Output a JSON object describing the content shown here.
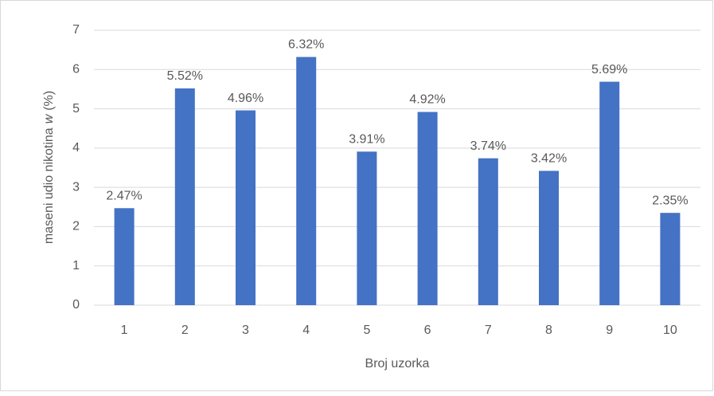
{
  "chart_data": {
    "type": "bar",
    "x_label": "Broj uzorka",
    "y_label_parts": [
      "maseni udio nikotina",
      "w",
      "(%)"
    ],
    "categories": [
      "1",
      "2",
      "3",
      "4",
      "5",
      "6",
      "7",
      "8",
      "9",
      "10"
    ],
    "values": [
      2.47,
      5.52,
      4.96,
      6.32,
      3.91,
      4.92,
      3.74,
      3.42,
      5.69,
      2.35
    ],
    "value_labels": [
      "2.47%",
      "5.52%",
      "4.96%",
      "6.32%",
      "3.91%",
      "4.92%",
      "3.74%",
      "3.42%",
      "5.69%",
      "2.35%"
    ],
    "color": "#4472c4",
    "ylim": [
      0,
      7
    ],
    "yticks": [
      0,
      1,
      2,
      3,
      4,
      5,
      6,
      7
    ],
    "grid": true
  }
}
